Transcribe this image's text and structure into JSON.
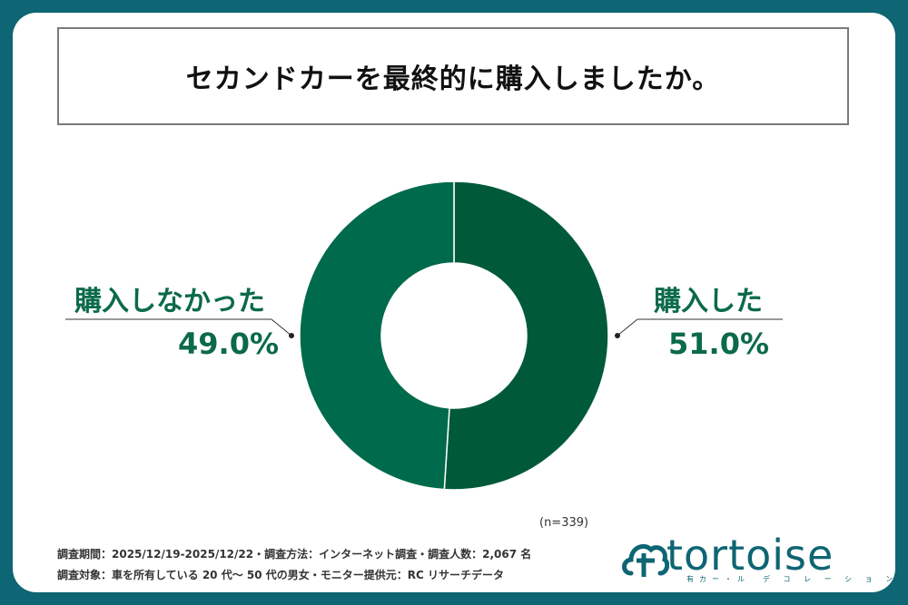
{
  "title": "セカンドカーを最終的に購入しましたか。",
  "chart_data": {
    "type": "pie",
    "donut": true,
    "slices": [
      {
        "label": "購入した",
        "value": 51.0,
        "value_text": "51.0%",
        "color": "#005a3a"
      },
      {
        "label": "購入しなかった",
        "value": 49.0,
        "value_text": "49.0%",
        "color": "#006a4c"
      }
    ]
  },
  "sample_size": "(n=339)",
  "footer": {
    "line1": "調査期間：2025/12/19-2025/12/22・調査方法：インターネット調査・調査人数：2,067 名",
    "line2": "調査対象：車を所有している 20 代〜 50 代の男女・モニター提供元：RC リサーチデータ"
  },
  "logo": {
    "text": "tortoise",
    "sub": "有カー・ル　デ コ レ ー シ ョ ン"
  }
}
